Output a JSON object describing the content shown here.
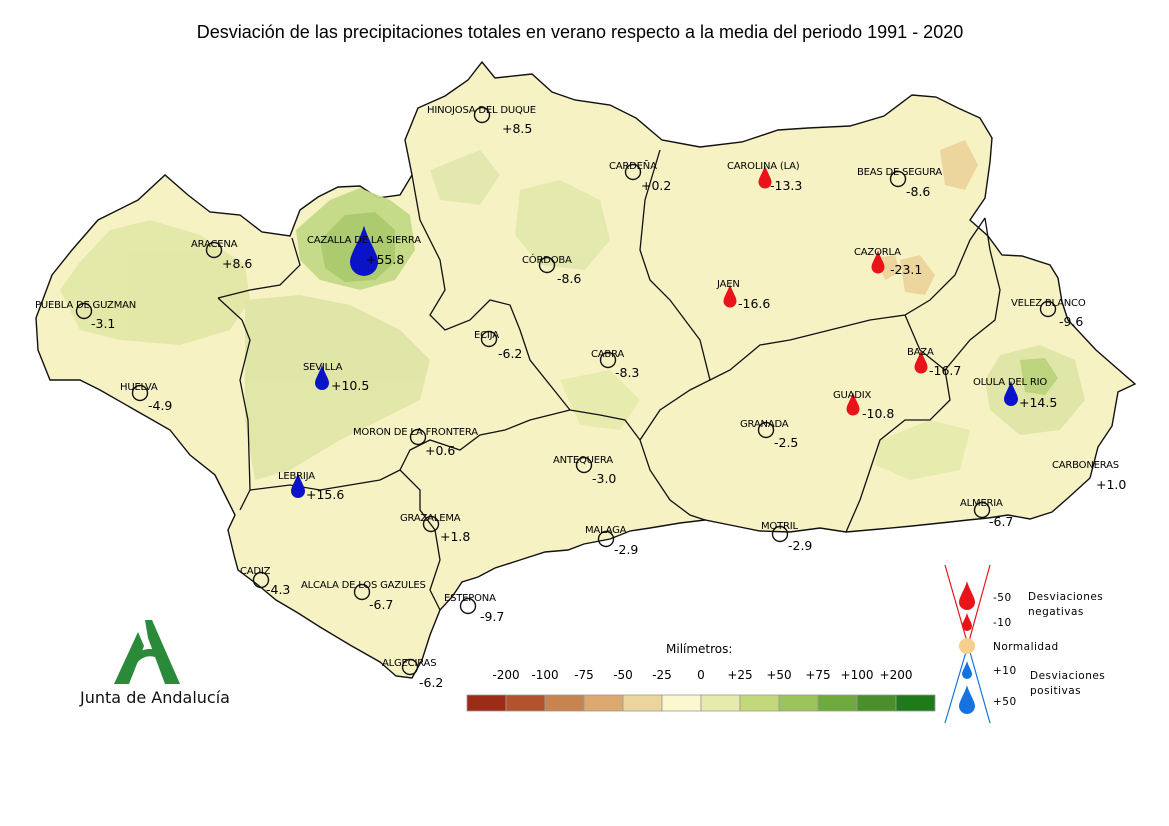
{
  "title": "Desviación de las precipitaciones totales en verano respecto a la media del periodo 1991 - 2020",
  "stations": [
    {
      "name": "HINOJOSA DEL DUQUE",
      "value": "+8.5",
      "symbol": "circle"
    },
    {
      "name": "CARDEÑA",
      "value": "+0.2",
      "symbol": "circle"
    },
    {
      "name": "CAROLINA (LA)",
      "value": "-13.3",
      "symbol": "red-drop"
    },
    {
      "name": "BEAS DE SEGURA",
      "value": "-8.6",
      "symbol": "circle"
    },
    {
      "name": "ARACENA",
      "value": "+8.6",
      "symbol": "circle"
    },
    {
      "name": "CAZALLA DE LA SIERRA",
      "value": "+55.8",
      "symbol": "blue-drop-large"
    },
    {
      "name": "CÓRDOBA",
      "value": "-8.6",
      "symbol": "circle"
    },
    {
      "name": "CAZORLA",
      "value": "-23.1",
      "symbol": "red-drop"
    },
    {
      "name": "JAEN",
      "value": "-16.6",
      "symbol": "red-drop"
    },
    {
      "name": "PUEBLA DE GUZMAN",
      "value": "-3.1",
      "symbol": "circle"
    },
    {
      "name": "ECIJA",
      "value": "-6.2",
      "symbol": "circle"
    },
    {
      "name": "VELEZ BLANCO",
      "value": "-9.6",
      "symbol": "circle"
    },
    {
      "name": "SEVILLA",
      "value": "+10.5",
      "symbol": "blue-drop"
    },
    {
      "name": "CABRA",
      "value": "-8.3",
      "symbol": "circle"
    },
    {
      "name": "BAZA",
      "value": "-16.7",
      "symbol": "red-drop"
    },
    {
      "name": "HUELVA",
      "value": "-4.9",
      "symbol": "circle"
    },
    {
      "name": "OLULA DEL RIO",
      "value": "+14.5",
      "symbol": "blue-drop"
    },
    {
      "name": "GUADIX",
      "value": "-10.8",
      "symbol": "red-drop"
    },
    {
      "name": "GRANADA",
      "value": "-2.5",
      "symbol": "circle"
    },
    {
      "name": "MORON DE LA FRONTERA",
      "value": "+0.6",
      "symbol": "circle"
    },
    {
      "name": "ANTEQUERA",
      "value": "-3.0",
      "symbol": "circle"
    },
    {
      "name": "CARBONERAS",
      "value": "+1.0",
      "symbol": "none"
    },
    {
      "name": "LEBRIJA",
      "value": "+15.6",
      "symbol": "blue-drop"
    },
    {
      "name": "ALMERIA",
      "value": "-6.7",
      "symbol": "circle"
    },
    {
      "name": "GRAZALEMA",
      "value": "+1.8",
      "symbol": "circle"
    },
    {
      "name": "MALAGA",
      "value": "-2.9",
      "symbol": "circle"
    },
    {
      "name": "MOTRIL",
      "value": "-2.9",
      "symbol": "circle"
    },
    {
      "name": "CADIZ",
      "value": "-4.3",
      "symbol": "circle"
    },
    {
      "name": "ALCALA DE LOS GAZULES",
      "value": "-6.7",
      "symbol": "circle"
    },
    {
      "name": "ESTEPONA",
      "value": "-9.7",
      "symbol": "circle"
    },
    {
      "name": "ALGECIRAS",
      "value": "-6.2",
      "symbol": "circle"
    }
  ],
  "scale": {
    "title": "Milímetros:",
    "labels": [
      "-200",
      "-100",
      "-75",
      "-50",
      "-25",
      "0",
      "+25",
      "+50",
      "+75",
      "+100",
      "+200"
    ],
    "colors": [
      "#9c2b17",
      "#b3532b",
      "#c8844f",
      "#dba870",
      "#ecd59d",
      "#fbf8cf",
      "#e6ebad",
      "#c2d87a",
      "#9bc55a",
      "#6faa3d",
      "#4b8f2a",
      "#1f7a1a"
    ]
  },
  "legend": {
    "items": [
      {
        "value": "-50",
        "symbol": "red-drop-large"
      },
      {
        "value": "-10",
        "symbol": "red-drop-small"
      },
      {
        "value": "Normalidad",
        "symbol": "normal-circle"
      },
      {
        "value": "+10",
        "symbol": "blue-drop-small"
      },
      {
        "value": "+50",
        "symbol": "blue-drop-large"
      }
    ],
    "negative_label": [
      "Desviaciones",
      "negativas"
    ],
    "positive_label": [
      "Desviaciones",
      "positivas"
    ]
  },
  "logo": {
    "text": "Junta de Andalucía"
  },
  "colors": {
    "red": "#e8141a",
    "blue": "#0a13c8",
    "legend_blue": "#1573e0",
    "normal": "#f6cf8d",
    "land": "#f6f2c4",
    "green_light": "#dfe5a5",
    "green_mid": "#b3cf73"
  }
}
